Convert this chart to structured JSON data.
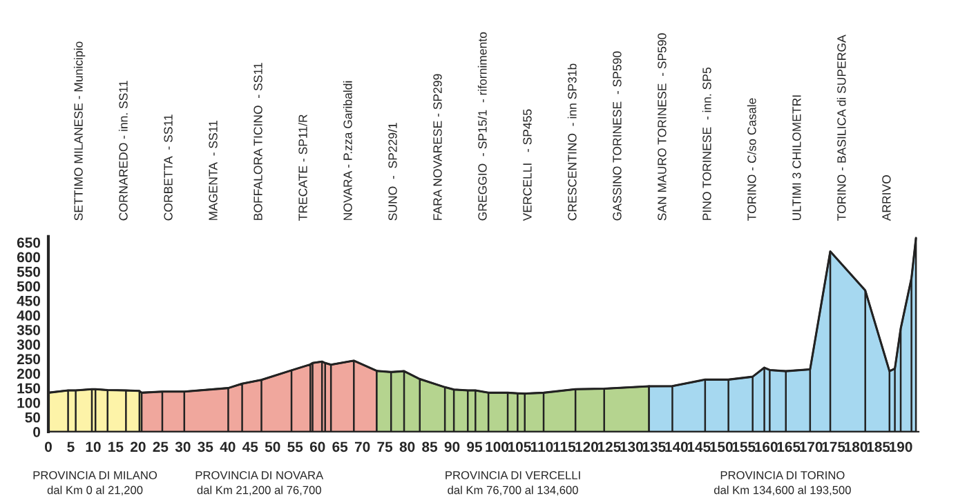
{
  "chart_data": {
    "type": "area",
    "series": [
      {
        "color": "#fdf3a8",
        "x": [
          0,
          4.4,
          6.1,
          9.7,
          10.5,
          13.2,
          17.3,
          20.3,
          20.8
        ],
        "values": [
          134,
          142,
          142,
          146,
          146,
          143,
          142,
          140,
          134
        ]
      },
      {
        "color": "#f0a79d",
        "x": [
          20.8,
          25.4,
          30.3,
          40.1,
          43.2,
          47.5,
          54.2,
          58.4,
          58.9,
          61,
          61.7,
          63,
          68.1,
          73.2
        ],
        "values": [
          134,
          138,
          138,
          150,
          165,
          178,
          211,
          231,
          236,
          241,
          236,
          230,
          244,
          209
        ]
      },
      {
        "color": "#b5d48f",
        "x": [
          73.2,
          76.4,
          79.3,
          82.8,
          88.4,
          90.4,
          93.5,
          95.2,
          98.1,
          102.4,
          104.6,
          106.2,
          110.4,
          117.5,
          123.9,
          133.9
        ],
        "values": [
          209,
          205,
          208,
          181,
          153,
          145,
          142,
          142,
          134,
          134,
          132,
          131,
          134,
          146,
          148,
          156
        ]
      },
      {
        "color": "#a6d8f0",
        "x": [
          133.9,
          139.1,
          146.4,
          151.6,
          157,
          159.6,
          160.8,
          164.4,
          169.8,
          174.3,
          182.1,
          187.5,
          188.7,
          190,
          192.4,
          193.4
        ],
        "values": [
          156,
          157,
          179,
          179,
          189,
          220,
          212,
          208,
          214,
          619,
          485,
          208,
          217,
          354,
          527,
          665
        ]
      }
    ],
    "xlim": [
      0,
      194
    ],
    "ylim": [
      0,
      670
    ],
    "xticks": [
      0,
      5,
      10,
      15,
      20,
      25,
      30,
      35,
      40,
      45,
      50,
      55,
      60,
      65,
      70,
      75,
      80,
      85,
      90,
      95,
      100,
      105,
      110,
      115,
      120,
      125,
      130,
      135,
      140,
      145,
      150,
      155,
      160,
      165,
      170,
      175,
      180,
      185,
      190
    ],
    "yticks": [
      0,
      50,
      100,
      150,
      200,
      250,
      300,
      350,
      400,
      450,
      500,
      550,
      600,
      650
    ],
    "grid": false,
    "legend": false,
    "annotations": [
      "SETTIMO MILANESE - Municipio",
      "CORNAREDO - inn. SS11",
      "CORBETTA  - SS11",
      "MAGENTA  - SS11",
      "BOFFALORA TICINO  - SS11",
      "TRECATE - SP11/R",
      "NOVARA - P.zza Garibaldi",
      "SUNO  -  SP229/1",
      "FARA NOVARESE - SP299",
      "GREGGIO  - SP15/1  - rifornimento",
      "VERCELLI   - SP455",
      "CRESCENTINO  - inn SP31b",
      "GASSINO TORINESE  - SP590",
      "SAN MAURO TORINESE  - SP590",
      "PINO TORINESE  - inn. SP5",
      "TORINO - C/so Casale",
      "ULTIMI 3 CHILOMETRI",
      "TORINO - BASILICA di SUPERGA",
      "ARRIVO",
      "PROVINCIA DI MILANO\ndal Km 0 al 21,200",
      "PROVINCIA DI NOVARA\ndal Km 21,200 al 76,700",
      "PROVINCIA DI VERCELLI\ndal Km 76,700 al 134,600",
      "PROVINCIA DI TORINO\ndal Km 134,600 al 193,500"
    ]
  }
}
